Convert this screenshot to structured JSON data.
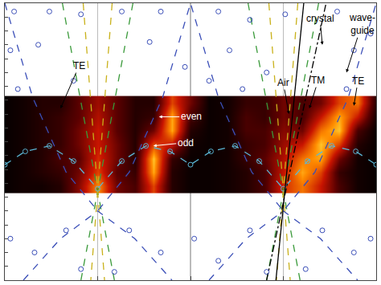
{
  "chart_data": {
    "type": "scatter",
    "xlim": [
      -0.5,
      1.5
    ],
    "xticks": [
      -0.5,
      0,
      0.5,
      1,
      1.5
    ],
    "ylim": [
      0,
      1
    ],
    "yticks": [
      0,
      0.05,
      0.1,
      0.15,
      0.2,
      0.25,
      0.3,
      0.35,
      0.4,
      0.45,
      0.5,
      0.55,
      0.6,
      0.65,
      0.7,
      0.75,
      0.8,
      0.85,
      0.9,
      0.95,
      1
    ],
    "tick_labels": false,
    "grid": "x",
    "heatmap": {
      "x": [
        -0.5,
        -0.4,
        -0.3,
        -0.2,
        -0.1,
        0,
        0.1,
        0.2,
        0.3,
        0.4,
        0.5,
        0.6,
        0.7,
        0.8,
        0.9,
        1,
        1.1,
        1.2,
        1.3,
        1.4,
        1.5
      ],
      "y": [
        0.34,
        0.39,
        0.44,
        0.49,
        0.54,
        0.59,
        0.64
      ],
      "z": [
        [
          0.02,
          0.05,
          0.05,
          0.1,
          0.35,
          0.75,
          0.3,
          0.2,
          0.6,
          0.1,
          0.03,
          0.03,
          0.05,
          0.1,
          0.2,
          0.55,
          0.7,
          0.5,
          0.2,
          0.05,
          0.02
        ],
        [
          0.02,
          0.05,
          0.1,
          0.15,
          0.3,
          0.6,
          0.25,
          0.15,
          0.8,
          0.1,
          0.03,
          0.03,
          0.05,
          0.1,
          0.2,
          0.5,
          0.8,
          0.6,
          0.15,
          0.05,
          0.02
        ],
        [
          0.02,
          0.05,
          0.1,
          0.2,
          0.25,
          0.55,
          0.3,
          0.1,
          0.85,
          0.15,
          0.03,
          0.03,
          0.05,
          0.15,
          0.25,
          0.45,
          0.7,
          0.8,
          0.3,
          0.05,
          0.02
        ],
        [
          0.02,
          0.05,
          0.1,
          0.15,
          0.3,
          0.5,
          0.3,
          0.1,
          0.6,
          0.5,
          0.05,
          0.03,
          0.05,
          0.15,
          0.2,
          0.4,
          0.5,
          0.85,
          0.6,
          0.1,
          0.02
        ],
        [
          0.02,
          0.05,
          0.1,
          0.15,
          0.3,
          0.5,
          0.25,
          0.1,
          0.3,
          0.8,
          0.1,
          0.03,
          0.05,
          0.2,
          0.2,
          0.35,
          0.3,
          0.7,
          0.85,
          0.2,
          0.02
        ],
        [
          0.02,
          0.05,
          0.1,
          0.15,
          0.25,
          0.45,
          0.25,
          0.1,
          0.15,
          0.8,
          0.2,
          0.03,
          0.05,
          0.2,
          0.15,
          0.3,
          0.2,
          0.5,
          0.8,
          0.5,
          0.05
        ],
        [
          0.02,
          0.05,
          0.1,
          0.1,
          0.25,
          0.4,
          0.25,
          0.1,
          0.1,
          0.6,
          0.3,
          0.03,
          0.05,
          0.15,
          0.15,
          0.3,
          0.2,
          0.3,
          0.6,
          0.7,
          0.1
        ]
      ],
      "zlim": [
        0,
        1
      ]
    },
    "series": [
      {
        "color": "#3a9a3a",
        "line_style": "dash",
        "marker": "none",
        "x": [
          -0.19,
          0.09,
          null,
          0.19,
          -0.09,
          null,
          0.81,
          1.09,
          null,
          1.19,
          0.91
        ],
        "y": [
          1,
          0,
          null,
          1,
          0,
          null,
          1,
          0,
          null,
          1,
          0
        ]
      },
      {
        "color": "#c9b11a",
        "line_style": "dash",
        "marker": "none",
        "x": [
          -0.078,
          0.037,
          null,
          0.078,
          -0.037,
          null,
          0.922,
          1.037,
          null,
          1.078,
          0.963
        ],
        "y": [
          1,
          0,
          null,
          1,
          0,
          null,
          1,
          0,
          null,
          1,
          0
        ]
      },
      {
        "color": "#3b4fb8",
        "line_style": "dash",
        "marker": "none",
        "x": [
          -0.5,
          -0.35,
          -0.17,
          0,
          0.17,
          0.35,
          0.5,
          0.65,
          0.83,
          1,
          1.17,
          1.35,
          1.5
        ],
        "y": [
          1,
          0.66,
          0.39,
          0.25,
          0.39,
          0.66,
          1,
          0.66,
          0.39,
          0.25,
          0.39,
          0.66,
          1
        ]
      },
      {
        "color": "#3b4fb8",
        "line_style": "dash",
        "marker": "none",
        "x": [
          -0.4,
          -0.2,
          0,
          0.2,
          0.4,
          null,
          0.6,
          0.8,
          1,
          1.2,
          1.4
        ],
        "y": [
          0,
          0.15,
          0.25,
          0.15,
          0,
          null,
          0,
          0.15,
          0.25,
          0.15,
          0
        ]
      },
      {
        "color": "#5bb7d6",
        "line_style": "dash",
        "marker": "circle-open",
        "x": [
          -0.5,
          -0.39,
          -0.26,
          -0.13,
          0,
          0.13,
          0.26,
          0.39,
          0.5,
          0.61,
          0.74,
          0.87,
          1,
          1.13,
          1.26,
          1.39,
          1.5
        ],
        "y": [
          0.417,
          0.465,
          0.485,
          0.43,
          0.33,
          0.43,
          0.485,
          0.465,
          0.417,
          0.465,
          0.485,
          0.43,
          0.33,
          0.43,
          0.485,
          0.465,
          0.417
        ]
      },
      {
        "color": "#000000",
        "line_style": "solid",
        "marker": "none",
        "x": [
          0.96,
          1.11
        ],
        "y": [
          0,
          1
        ]
      },
      {
        "color": "#000000",
        "line_style": "dashdot",
        "marker": "none",
        "x": [
          0.91,
          1.23
        ],
        "y": [
          0,
          1
        ]
      },
      {
        "color": "#3b4fb8",
        "line_style": "none",
        "marker": "circle-open",
        "x": [
          -0.45,
          -0.26,
          -0.09,
          0.13,
          0.34,
          0.65,
          0.82,
          1.01,
          1.29,
          1.47,
          -0.47,
          -0.32,
          0.28,
          0.47,
          0.71,
          0.91,
          1.38,
          -0.43,
          -0.13,
          0.6,
          0.78,
          1.34,
          -0.47,
          -0.34,
          -0.17,
          0.17,
          0.34,
          0.52,
          0.65,
          0.82,
          1.21,
          1.38,
          1.47,
          -0.09,
          0.09,
          0.91,
          1.12
        ],
        "y": [
          0.97,
          0.97,
          0.96,
          0.97,
          0.97,
          0.97,
          0.94,
          0.96,
          0.97,
          0.89,
          0.83,
          0.85,
          0.86,
          0.77,
          0.83,
          0.75,
          0.83,
          0.69,
          0.72,
          0.72,
          0.69,
          0.69,
          0.15,
          0.1,
          0.18,
          0.18,
          0.1,
          0.15,
          0.07,
          0.18,
          0.18,
          0.1,
          0.15,
          0.04,
          0.03,
          0.03,
          0.04
        ]
      }
    ],
    "annotations": [
      {
        "text": "TE",
        "x": -0.2,
        "y": 0.62
      },
      {
        "text": "even",
        "x": 0.33,
        "y": 0.59
      },
      {
        "text": "odd",
        "x": 0.3,
        "y": 0.485
      },
      {
        "text": "Air",
        "x": 1.03,
        "y": 0.6
      },
      {
        "text": "crystal",
        "x": 1.21,
        "y": 0.85
      },
      {
        "text": "TM",
        "x": 1.14,
        "y": 0.62
      },
      {
        "text": "TE",
        "x": 1.38,
        "y": 0.63
      },
      {
        "text": "wave-\nguide",
        "x": 1.34,
        "y": 0.75
      }
    ]
  }
}
